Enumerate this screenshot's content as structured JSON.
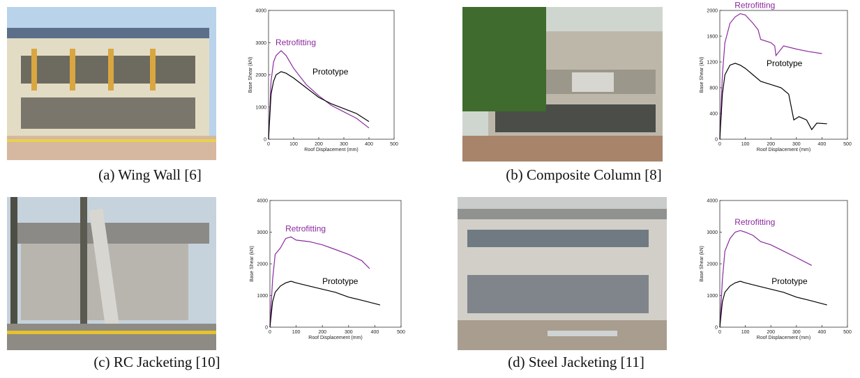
{
  "chart_data": [
    {
      "type": "line",
      "caption": "(a) Wing Wall [6]",
      "xlabel": "Roof Displacement (mm)",
      "ylabel": "Base Shear (kN)",
      "xlim": [
        0,
        500
      ],
      "xticks": [
        0,
        100,
        200,
        300,
        400,
        500
      ],
      "ylim": [
        0,
        4000
      ],
      "yticks": [
        0,
        1000,
        2000,
        3000,
        4000
      ],
      "series": [
        {
          "name": "Retrofitting",
          "color": "#8a2a9e",
          "x": [
            0,
            10,
            20,
            30,
            50,
            70,
            100,
            150,
            200,
            250,
            300,
            350,
            400
          ],
          "values": [
            0,
            1800,
            2400,
            2600,
            2750,
            2600,
            2200,
            1700,
            1350,
            1050,
            850,
            650,
            350
          ]
        },
        {
          "name": "Prototype",
          "color": "#000000",
          "x": [
            0,
            10,
            20,
            30,
            50,
            70,
            100,
            150,
            200,
            250,
            300,
            350,
            400
          ],
          "values": [
            0,
            1400,
            1800,
            2000,
            2100,
            2050,
            1900,
            1600,
            1300,
            1100,
            950,
            800,
            550
          ]
        }
      ]
    },
    {
      "type": "line",
      "caption": "(b) Composite Column [8]",
      "xlabel": "Roof Displacement (mm)",
      "ylabel": "Base Shear (kN)",
      "xlim": [
        0,
        500
      ],
      "xticks": [
        0,
        100,
        200,
        300,
        400,
        500
      ],
      "ylim": [
        0,
        2000
      ],
      "yticks": [
        0,
        400,
        800,
        1200,
        1600,
        2000
      ],
      "series": [
        {
          "name": "Retrofitting",
          "color": "#8a2a9e",
          "x": [
            0,
            10,
            20,
            40,
            60,
            80,
            100,
            130,
            150,
            160,
            200,
            215,
            220,
            250,
            300,
            350,
            400
          ],
          "values": [
            0,
            1000,
            1500,
            1800,
            1900,
            1950,
            1930,
            1800,
            1700,
            1550,
            1500,
            1450,
            1300,
            1450,
            1400,
            1360,
            1330
          ]
        },
        {
          "name": "Prototype",
          "color": "#000000",
          "x": [
            0,
            10,
            20,
            40,
            60,
            80,
            100,
            130,
            160,
            200,
            240,
            270,
            290,
            310,
            340,
            360,
            380,
            420
          ],
          "values": [
            0,
            700,
            1000,
            1150,
            1180,
            1150,
            1100,
            1000,
            900,
            850,
            800,
            700,
            300,
            350,
            300,
            150,
            250,
            240
          ]
        }
      ]
    },
    {
      "type": "line",
      "caption": "(c) RC Jacketing [10]",
      "xlabel": "Roof Displacement (mm)",
      "ylabel": "Base Shear (kN)",
      "xlim": [
        0,
        500
      ],
      "xticks": [
        0,
        100,
        200,
        300,
        400,
        500
      ],
      "ylim": [
        0,
        4000
      ],
      "yticks": [
        0,
        1000,
        2000,
        3000,
        4000
      ],
      "series": [
        {
          "name": "Retrofitting",
          "color": "#8a2a9e",
          "x": [
            0,
            10,
            20,
            40,
            60,
            80,
            100,
            150,
            200,
            250,
            300,
            350,
            380
          ],
          "values": [
            0,
            1500,
            2300,
            2500,
            2800,
            2850,
            2750,
            2700,
            2600,
            2450,
            2300,
            2100,
            1850
          ]
        },
        {
          "name": "Prototype",
          "color": "#000000",
          "x": [
            0,
            10,
            20,
            40,
            60,
            80,
            100,
            150,
            200,
            250,
            300,
            350,
            420
          ],
          "values": [
            0,
            800,
            1100,
            1300,
            1400,
            1450,
            1400,
            1300,
            1200,
            1100,
            950,
            850,
            700
          ]
        }
      ]
    },
    {
      "type": "line",
      "caption": "(d) Steel Jacketing [11]",
      "xlabel": "Roof Displacement (mm)",
      "ylabel": "Base Shear (kN)",
      "xlim": [
        0,
        500
      ],
      "xticks": [
        0,
        100,
        200,
        300,
        400,
        500
      ],
      "ylim": [
        0,
        4000
      ],
      "yticks": [
        0,
        1000,
        2000,
        3000,
        4000
      ],
      "series": [
        {
          "name": "Retrofitting",
          "color": "#8a2a9e",
          "x": [
            0,
            10,
            20,
            40,
            60,
            80,
            100,
            130,
            160,
            200,
            250,
            300,
            360
          ],
          "values": [
            0,
            1500,
            2400,
            2800,
            3000,
            3050,
            3000,
            2900,
            2700,
            2600,
            2400,
            2200,
            1950
          ]
        },
        {
          "name": "Prototype",
          "color": "#000000",
          "x": [
            0,
            10,
            20,
            40,
            60,
            80,
            100,
            150,
            200,
            250,
            300,
            350,
            420
          ],
          "values": [
            0,
            800,
            1100,
            1300,
            1400,
            1450,
            1400,
            1300,
            1200,
            1100,
            950,
            850,
            700
          ]
        }
      ]
    }
  ]
}
